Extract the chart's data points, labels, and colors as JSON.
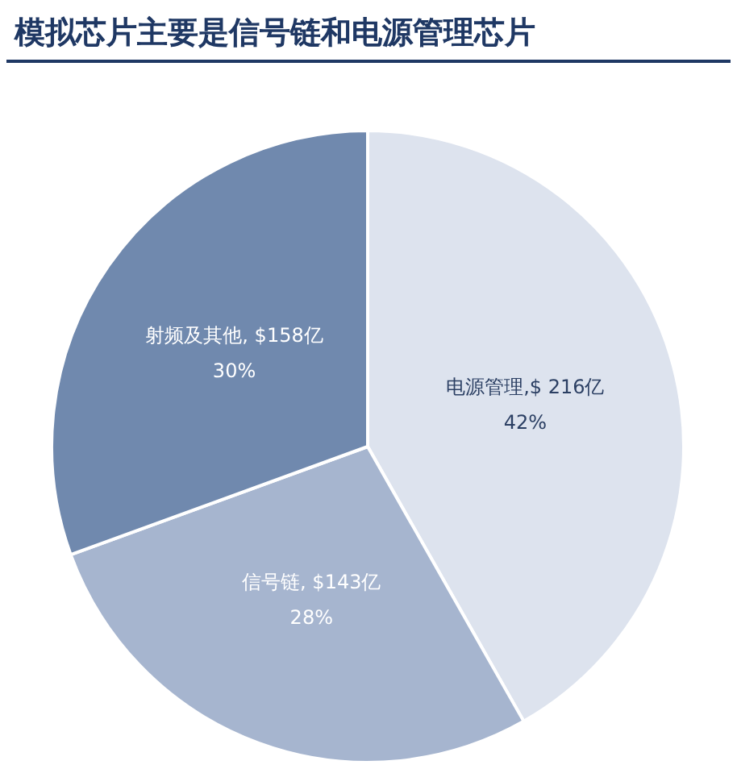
{
  "chart_data": {
    "type": "pie",
    "title": "模拟芯片主要是信号链和电源管理芯片",
    "categories": [
      "电源管理",
      "信号链",
      "射频及其他"
    ],
    "values": [
      216,
      143,
      158
    ],
    "value_labels": [
      ",$ 216亿\n42%",
      ", $143亿\n28%",
      ", $158亿\n30%"
    ],
    "colors": [
      "#dde3ee",
      "#a6b5cf",
      "#7089ae"
    ],
    "legend": false
  }
}
